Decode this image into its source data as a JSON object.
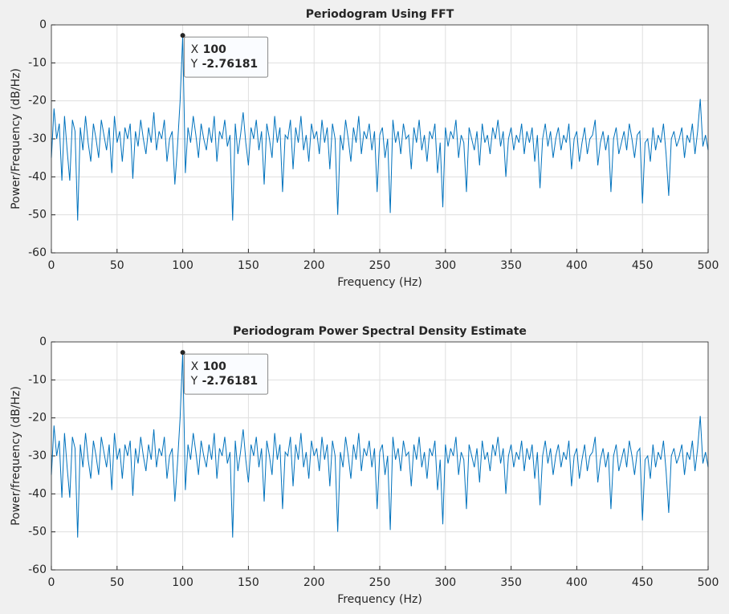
{
  "chart_data": [
    {
      "type": "line",
      "title": "Periodogram Using FFT",
      "xlabel": "Frequency (Hz)",
      "ylabel": "Power/Frequency (dB/Hz)",
      "x": [
        0,
        2,
        4,
        6,
        8,
        10,
        12,
        14,
        16,
        18,
        20,
        22,
        24,
        26,
        28,
        30,
        32,
        34,
        36,
        38,
        40,
        42,
        44,
        46,
        48,
        50,
        52,
        54,
        56,
        58,
        60,
        62,
        64,
        66,
        68,
        70,
        72,
        74,
        76,
        78,
        80,
        82,
        84,
        86,
        88,
        90,
        92,
        94,
        96,
        98,
        100,
        102,
        104,
        106,
        108,
        110,
        112,
        114,
        116,
        118,
        120,
        122,
        124,
        126,
        128,
        130,
        132,
        134,
        136,
        138,
        140,
        142,
        144,
        146,
        148,
        150,
        152,
        154,
        156,
        158,
        160,
        162,
        164,
        166,
        168,
        170,
        172,
        174,
        176,
        178,
        180,
        182,
        184,
        186,
        188,
        190,
        192,
        194,
        196,
        198,
        200,
        202,
        204,
        206,
        208,
        210,
        212,
        214,
        216,
        218,
        220,
        222,
        224,
        226,
        228,
        230,
        232,
        234,
        236,
        238,
        240,
        242,
        244,
        246,
        248,
        250,
        252,
        254,
        256,
        258,
        260,
        262,
        264,
        266,
        268,
        270,
        272,
        274,
        276,
        278,
        280,
        282,
        284,
        286,
        288,
        290,
        292,
        294,
        296,
        298,
        300,
        302,
        304,
        306,
        308,
        310,
        312,
        314,
        316,
        318,
        320,
        322,
        324,
        326,
        328,
        330,
        332,
        334,
        336,
        338,
        340,
        342,
        344,
        346,
        348,
        350,
        352,
        354,
        356,
        358,
        360,
        362,
        364,
        366,
        368,
        370,
        372,
        374,
        376,
        378,
        380,
        382,
        384,
        386,
        388,
        390,
        392,
        394,
        396,
        398,
        400,
        402,
        404,
        406,
        408,
        410,
        412,
        414,
        416,
        418,
        420,
        422,
        424,
        426,
        428,
        430,
        432,
        434,
        436,
        438,
        440,
        442,
        444,
        446,
        448,
        450,
        452,
        454,
        456,
        458,
        460,
        462,
        464,
        466,
        468,
        470,
        472,
        474,
        476,
        478,
        480,
        482,
        484,
        486,
        488,
        490,
        492,
        494,
        496,
        498,
        500
      ],
      "color": "#0072bd",
      "values": [
        -35,
        -22,
        -30,
        -26,
        -41,
        -24,
        -33,
        -41,
        -25,
        -28,
        -51.5,
        -27,
        -33,
        -24,
        -31,
        -36,
        -26,
        -30,
        -35,
        -25,
        -29,
        -33,
        -27,
        -39,
        -24,
        -31,
        -28,
        -36,
        -27,
        -30,
        -26,
        -40.5,
        -28,
        -32,
        -25,
        -30,
        -34,
        -27,
        -31,
        -23,
        -33,
        -28,
        -30,
        -25,
        -36,
        -30,
        -28,
        -42,
        -32,
        -20,
        -2.76181,
        -39,
        -27,
        -31,
        -24,
        -29,
        -35,
        -26,
        -30,
        -33,
        -27,
        -31,
        -24,
        -36,
        -28,
        -30,
        -25,
        -32,
        -29,
        -51.5,
        -26,
        -34,
        -29,
        -23,
        -31,
        -37,
        -27,
        -30,
        -25,
        -33,
        -28,
        -42,
        -26,
        -30,
        -35,
        -24,
        -31,
        -27,
        -44,
        -29,
        -30,
        -25,
        -38,
        -27,
        -31,
        -24,
        -33,
        -29,
        -36,
        -26,
        -30,
        -28,
        -34,
        -25,
        -31,
        -27,
        -38,
        -26,
        -30,
        -50,
        -29,
        -33,
        -25,
        -30,
        -36,
        -27,
        -31,
        -24,
        -34,
        -28,
        -30,
        -26,
        -33,
        -28,
        -44,
        -29,
        -27,
        -35,
        -30,
        -49.5,
        -25,
        -31,
        -28,
        -34,
        -26,
        -30,
        -29,
        -38,
        -27,
        -31,
        -25,
        -33,
        -29,
        -36,
        -28,
        -30,
        -26,
        -39,
        -31,
        -48,
        -27,
        -32,
        -28,
        -30,
        -25,
        -35,
        -29,
        -31,
        -44,
        -27,
        -30,
        -33,
        -28,
        -37,
        -26,
        -31,
        -29,
        -34,
        -27,
        -30,
        -25,
        -32,
        -28,
        -40,
        -30,
        -27,
        -33,
        -29,
        -31,
        -26,
        -34,
        -28,
        -31,
        -27,
        -36,
        -29,
        -43,
        -30,
        -26,
        -32,
        -28,
        -35,
        -30,
        -27,
        -33,
        -29,
        -31,
        -26,
        -38,
        -30,
        -28,
        -36,
        -31,
        -27,
        -34,
        -30,
        -29,
        -25,
        -37,
        -31,
        -28,
        -33,
        -29,
        -44,
        -30,
        -27,
        -34,
        -31,
        -28,
        -33,
        -26,
        -30,
        -35,
        -29,
        -28,
        -47,
        -31,
        -30,
        -36,
        -27,
        -33,
        -29,
        -31,
        -26,
        -34,
        -45,
        -30,
        -28,
        -32,
        -30,
        -27,
        -35,
        -29,
        -31,
        -26,
        -34,
        -28,
        -19.5,
        -32,
        -29,
        -33
      ],
      "xlim": [
        0,
        500
      ],
      "xticks": [
        0,
        50,
        100,
        150,
        200,
        250,
        300,
        350,
        400,
        450,
        500
      ],
      "ylim": [
        -60,
        0
      ],
      "yticks": [
        -60,
        -50,
        -40,
        -30,
        -20,
        -10,
        0
      ],
      "grid": true,
      "datatip": {
        "x_label": "X",
        "x": 100,
        "y_label": "Y",
        "y": -2.76181
      }
    },
    {
      "type": "line",
      "title": "Periodogram Power Spectral Density Estimate",
      "xlabel": "Frequency (Hz)",
      "ylabel": "Power/frequency (dB/Hz)",
      "x": [
        0,
        2,
        4,
        6,
        8,
        10,
        12,
        14,
        16,
        18,
        20,
        22,
        24,
        26,
        28,
        30,
        32,
        34,
        36,
        38,
        40,
        42,
        44,
        46,
        48,
        50,
        52,
        54,
        56,
        58,
        60,
        62,
        64,
        66,
        68,
        70,
        72,
        74,
        76,
        78,
        80,
        82,
        84,
        86,
        88,
        90,
        92,
        94,
        96,
        98,
        100,
        102,
        104,
        106,
        108,
        110,
        112,
        114,
        116,
        118,
        120,
        122,
        124,
        126,
        128,
        130,
        132,
        134,
        136,
        138,
        140,
        142,
        144,
        146,
        148,
        150,
        152,
        154,
        156,
        158,
        160,
        162,
        164,
        166,
        168,
        170,
        172,
        174,
        176,
        178,
        180,
        182,
        184,
        186,
        188,
        190,
        192,
        194,
        196,
        198,
        200,
        202,
        204,
        206,
        208,
        210,
        212,
        214,
        216,
        218,
        220,
        222,
        224,
        226,
        228,
        230,
        232,
        234,
        236,
        238,
        240,
        242,
        244,
        246,
        248,
        250,
        252,
        254,
        256,
        258,
        260,
        262,
        264,
        266,
        268,
        270,
        272,
        274,
        276,
        278,
        280,
        282,
        284,
        286,
        288,
        290,
        292,
        294,
        296,
        298,
        300,
        302,
        304,
        306,
        308,
        310,
        312,
        314,
        316,
        318,
        320,
        322,
        324,
        326,
        328,
        330,
        332,
        334,
        336,
        338,
        340,
        342,
        344,
        346,
        348,
        350,
        352,
        354,
        356,
        358,
        360,
        362,
        364,
        366,
        368,
        370,
        372,
        374,
        376,
        378,
        380,
        382,
        384,
        386,
        388,
        390,
        392,
        394,
        396,
        398,
        400,
        402,
        404,
        406,
        408,
        410,
        412,
        414,
        416,
        418,
        420,
        422,
        424,
        426,
        428,
        430,
        432,
        434,
        436,
        438,
        440,
        442,
        444,
        446,
        448,
        450,
        452,
        454,
        456,
        458,
        460,
        462,
        464,
        466,
        468,
        470,
        472,
        474,
        476,
        478,
        480,
        482,
        484,
        486,
        488,
        490,
        492,
        494,
        496,
        498,
        500
      ],
      "color": "#0072bd",
      "values": [
        -35,
        -22,
        -30,
        -26,
        -41,
        -24,
        -33,
        -41,
        -25,
        -28,
        -51.5,
        -27,
        -33,
        -24,
        -31,
        -36,
        -26,
        -30,
        -35,
        -25,
        -29,
        -33,
        -27,
        -39,
        -24,
        -31,
        -28,
        -36,
        -27,
        -30,
        -26,
        -40.5,
        -28,
        -32,
        -25,
        -30,
        -34,
        -27,
        -31,
        -23,
        -33,
        -28,
        -30,
        -25,
        -36,
        -30,
        -28,
        -42,
        -32,
        -20,
        -2.76181,
        -39,
        -27,
        -31,
        -24,
        -29,
        -35,
        -26,
        -30,
        -33,
        -27,
        -31,
        -24,
        -36,
        -28,
        -30,
        -25,
        -32,
        -29,
        -51.5,
        -26,
        -34,
        -29,
        -23,
        -31,
        -37,
        -27,
        -30,
        -25,
        -33,
        -28,
        -42,
        -26,
        -30,
        -35,
        -24,
        -31,
        -27,
        -44,
        -29,
        -30,
        -25,
        -38,
        -27,
        -31,
        -24,
        -33,
        -29,
        -36,
        -26,
        -30,
        -28,
        -34,
        -25,
        -31,
        -27,
        -38,
        -26,
        -30,
        -50,
        -29,
        -33,
        -25,
        -30,
        -36,
        -27,
        -31,
        -24,
        -34,
        -28,
        -30,
        -26,
        -33,
        -28,
        -44,
        -29,
        -27,
        -35,
        -30,
        -49.5,
        -25,
        -31,
        -28,
        -34,
        -26,
        -30,
        -29,
        -38,
        -27,
        -31,
        -25,
        -33,
        -29,
        -36,
        -28,
        -30,
        -26,
        -39,
        -31,
        -48,
        -27,
        -32,
        -28,
        -30,
        -25,
        -35,
        -29,
        -31,
        -44,
        -27,
        -30,
        -33,
        -28,
        -37,
        -26,
        -31,
        -29,
        -34,
        -27,
        -30,
        -25,
        -32,
        -28,
        -40,
        -30,
        -27,
        -33,
        -29,
        -31,
        -26,
        -34,
        -28,
        -31,
        -27,
        -36,
        -29,
        -43,
        -30,
        -26,
        -32,
        -28,
        -35,
        -30,
        -27,
        -33,
        -29,
        -31,
        -26,
        -38,
        -30,
        -28,
        -36,
        -31,
        -27,
        -34,
        -30,
        -29,
        -25,
        -37,
        -31,
        -28,
        -33,
        -29,
        -44,
        -30,
        -27,
        -34,
        -31,
        -28,
        -33,
        -26,
        -30,
        -35,
        -29,
        -28,
        -47,
        -31,
        -30,
        -36,
        -27,
        -33,
        -29,
        -31,
        -26,
        -34,
        -45,
        -30,
        -28,
        -32,
        -30,
        -27,
        -35,
        -29,
        -31,
        -26,
        -34,
        -28,
        -19.5,
        -32,
        -29,
        -33
      ],
      "xlim": [
        0,
        500
      ],
      "xticks": [
        0,
        50,
        100,
        150,
        200,
        250,
        300,
        350,
        400,
        450,
        500
      ],
      "ylim": [
        -60,
        0
      ],
      "yticks": [
        -60,
        -50,
        -40,
        -30,
        -20,
        -10,
        0
      ],
      "grid": true,
      "datatip": {
        "x_label": "X",
        "x": 100,
        "y_label": "Y",
        "y": -2.76181
      }
    }
  ]
}
